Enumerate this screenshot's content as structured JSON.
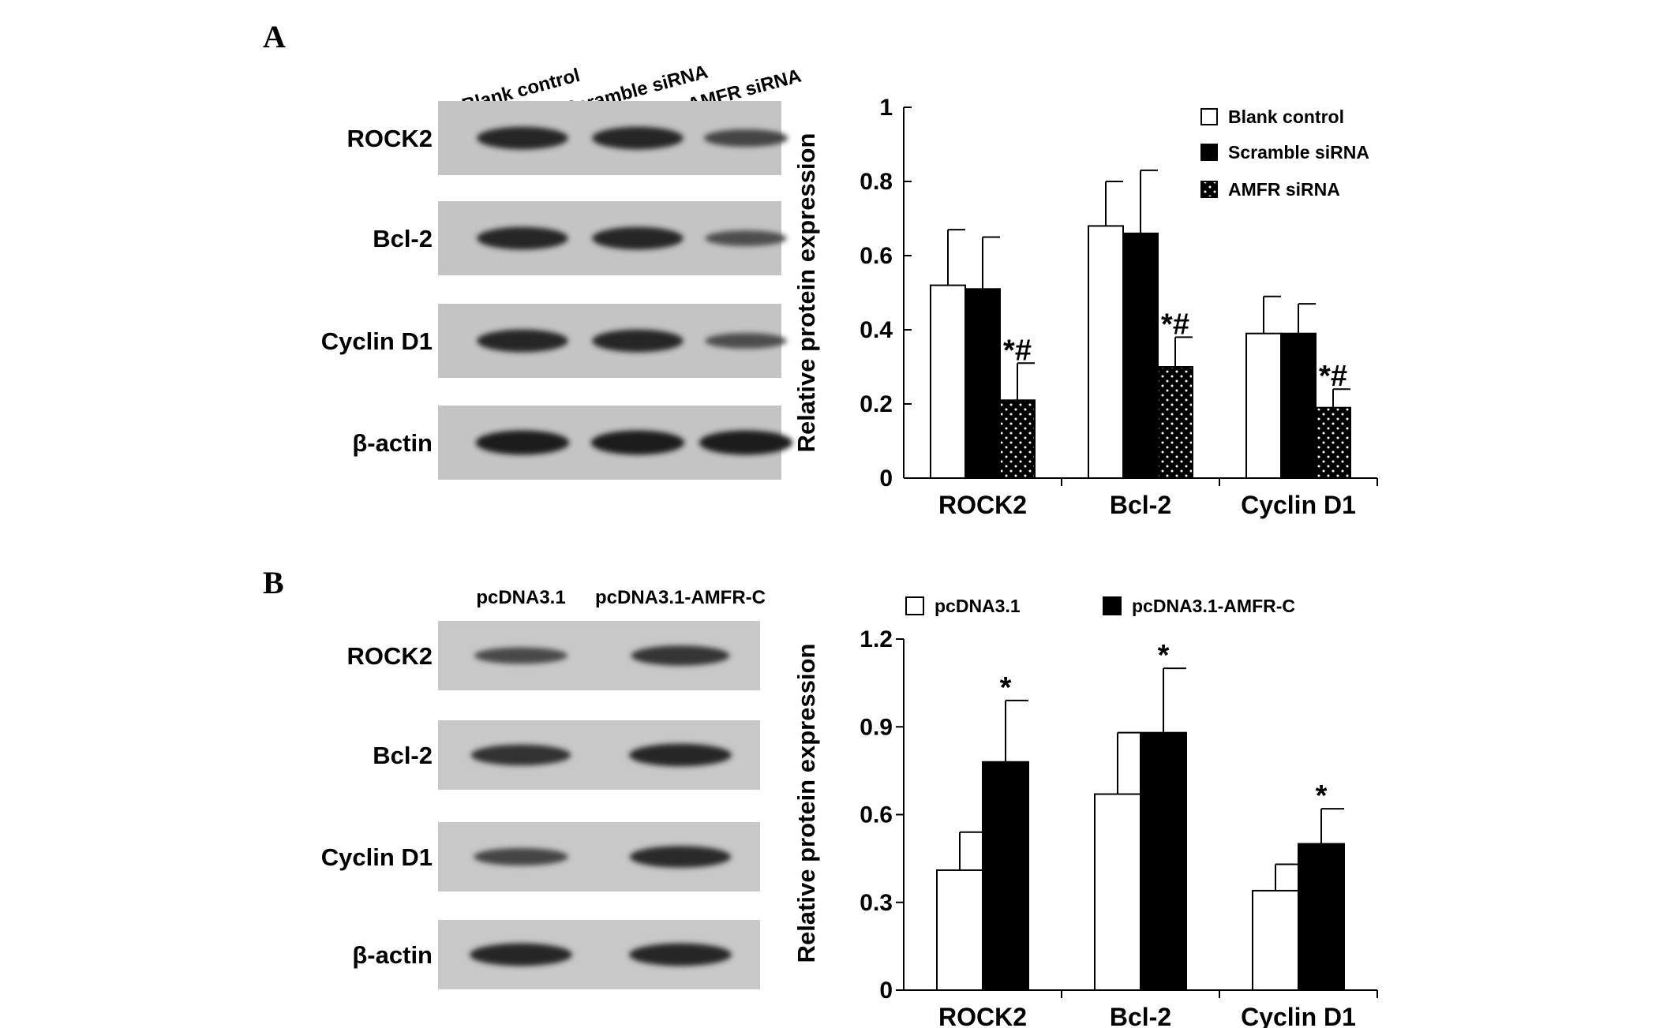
{
  "panels": [
    {
      "letter": "A",
      "blot": {
        "lanes": [
          "Blank control",
          "Scramble siRNA",
          "AMFR siRNA"
        ],
        "rows": [
          {
            "label": "ROCK2",
            "intensities": [
              0.85,
              0.85,
              0.55
            ]
          },
          {
            "label": "Bcl-2",
            "intensities": [
              0.85,
              0.85,
              0.45
            ]
          },
          {
            "label": "Cyclin D1",
            "intensities": [
              0.85,
              0.85,
              0.45
            ]
          },
          {
            "label": "β-actin",
            "intensities": [
              0.95,
              0.95,
              0.95
            ]
          }
        ]
      }
    },
    {
      "letter": "B",
      "blot": {
        "lanes": [
          "pcDNA3.1",
          "pcDNA3.1-AMFR-C"
        ],
        "rows": [
          {
            "label": "ROCK2",
            "intensities": [
              0.5,
              0.7
            ]
          },
          {
            "label": "Bcl-2",
            "intensities": [
              0.75,
              0.85
            ]
          },
          {
            "label": "Cyclin D1",
            "intensities": [
              0.55,
              0.8
            ]
          },
          {
            "label": "β-actin",
            "intensities": [
              0.85,
              0.85
            ]
          }
        ]
      }
    }
  ],
  "chart_data": [
    {
      "type": "bar",
      "title": "",
      "xlabel": "",
      "ylabel": "Relative protein expression",
      "categories": [
        "ROCK2",
        "Bcl-2",
        "Cyclin D1"
      ],
      "ylim": [
        0,
        1
      ],
      "yticks": [
        "0",
        "0.2",
        "0.4",
        "0.6",
        "0.8",
        "1"
      ],
      "ytick_values": [
        0,
        0.2,
        0.4,
        0.6,
        0.8,
        1
      ],
      "grid": false,
      "legend_position": "top-right",
      "series": [
        {
          "name": "Blank control",
          "values": [
            0.52,
            0.68,
            0.39
          ],
          "errors": [
            0.15,
            0.12,
            0.1
          ],
          "fill": "white"
        },
        {
          "name": "Scramble siRNA",
          "values": [
            0.51,
            0.66,
            0.39
          ],
          "errors": [
            0.14,
            0.17,
            0.08
          ],
          "fill": "black"
        },
        {
          "name": "AMFR siRNA",
          "values": [
            0.21,
            0.3,
            0.19
          ],
          "errors": [
            0.1,
            0.08,
            0.05
          ],
          "fill": "dotted"
        }
      ],
      "annotations": [
        {
          "category": "ROCK2",
          "series": "AMFR siRNA",
          "text": "*#"
        },
        {
          "category": "Bcl-2",
          "series": "AMFR siRNA",
          "text": "*#"
        },
        {
          "category": "Cyclin D1",
          "series": "AMFR siRNA",
          "text": "*#"
        }
      ]
    },
    {
      "type": "bar",
      "title": "",
      "xlabel": "",
      "ylabel": "Relative protein expression",
      "categories": [
        "ROCK2",
        "Bcl-2",
        "Cyclin D1"
      ],
      "ylim": [
        0,
        1.2
      ],
      "yticks": [
        "0",
        "0.3",
        "0.6",
        "0.9",
        "1.2"
      ],
      "ytick_values": [
        0,
        0.3,
        0.6,
        0.9,
        1.2
      ],
      "grid": false,
      "legend_position": "top",
      "series": [
        {
          "name": "pcDNA3.1",
          "values": [
            0.41,
            0.67,
            0.34
          ],
          "errors": [
            0.13,
            0.21,
            0.09
          ],
          "fill": "white"
        },
        {
          "name": "pcDNA3.1-AMFR-C",
          "values": [
            0.78,
            0.88,
            0.5
          ],
          "errors": [
            0.21,
            0.22,
            0.12
          ],
          "fill": "black"
        }
      ],
      "annotations": [
        {
          "category": "ROCK2",
          "series": "pcDNA3.1-AMFR-C",
          "text": "*"
        },
        {
          "category": "Bcl-2",
          "series": "pcDNA3.1-AMFR-C",
          "text": "*"
        },
        {
          "category": "Cyclin D1",
          "series": "pcDNA3.1-AMFR-C",
          "text": "*"
        }
      ]
    }
  ]
}
